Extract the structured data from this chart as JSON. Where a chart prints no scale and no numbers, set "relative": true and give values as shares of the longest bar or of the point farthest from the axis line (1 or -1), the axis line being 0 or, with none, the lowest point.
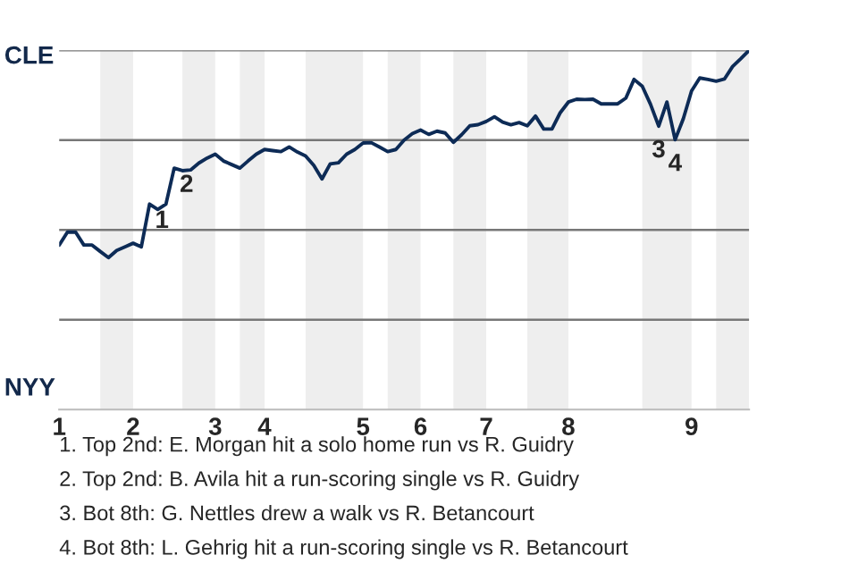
{
  "chart_data": {
    "type": "line",
    "relative": true,
    "categories": [
      "1",
      null,
      null,
      null,
      null,
      null,
      null,
      null,
      null,
      "2",
      null,
      null,
      null,
      null,
      null,
      null,
      null,
      null,
      null,
      "3",
      null,
      null,
      null,
      null,
      null,
      "4",
      null,
      null,
      null,
      null,
      null,
      null,
      null,
      null,
      null,
      null,
      null,
      "5",
      null,
      null,
      null,
      null,
      null,
      null,
      "6",
      null,
      null,
      null,
      null,
      null,
      null,
      null,
      "7",
      null,
      null,
      null,
      null,
      null,
      null,
      null,
      null,
      null,
      "8",
      null,
      null,
      null,
      null,
      null,
      null,
      null,
      null,
      null,
      null,
      null,
      null,
      null,
      null,
      "9",
      null,
      null,
      null,
      null,
      null,
      null,
      null
    ],
    "series": [
      {
        "color": "#0d2b56",
        "values": [
          0.458,
          0.494,
          0.494,
          0.458,
          0.458,
          0.44,
          0.423,
          0.443,
          0.453,
          0.463,
          0.453,
          0.572,
          0.557,
          0.572,
          0.672,
          0.665,
          0.667,
          0.686,
          0.7,
          0.711,
          0.692,
          0.682,
          0.672,
          0.692,
          0.711,
          0.724,
          0.721,
          0.718,
          0.731,
          0.717,
          0.706,
          0.68,
          0.642,
          0.684,
          0.687,
          0.711,
          0.724,
          0.742,
          0.743,
          0.731,
          0.718,
          0.724,
          0.75,
          0.768,
          0.778,
          0.766,
          0.775,
          0.77,
          0.744,
          0.765,
          0.79,
          0.793,
          0.802,
          0.815,
          0.8,
          0.793,
          0.799,
          0.79,
          0.817,
          0.781,
          0.781,
          0.826,
          0.856,
          0.864,
          0.863,
          0.864,
          0.851,
          0.851,
          0.851,
          0.867,
          0.919,
          0.9,
          0.85,
          0.789,
          0.856,
          0.751,
          0.81,
          0.887,
          0.923,
          0.919,
          0.914,
          0.92,
          0.955,
          0.977,
          1.0
        ]
      }
    ],
    "marker": "none",
    "line_style": "solid",
    "ref_lines": [
      {
        "axis": "y",
        "value": 0.25,
        "color": "#777777"
      },
      {
        "axis": "y",
        "value": 0.5,
        "color": "#777777"
      },
      {
        "axis": "y",
        "value": 0.75,
        "color": "#777777"
      },
      {
        "axis": "y",
        "value": 1,
        "color": "#777777"
      }
    ],
    "annotations": [
      "CLE",
      "NYY",
      {
        "text": "1",
        "y": 0.572
      },
      {
        "text": "2",
        "y": 0.672
      },
      {
        "text": "3",
        "y": 0.789
      },
      {
        "text": "4",
        "y": 0.751
      },
      "1. Top 2nd: E. Morgan hit a solo home run vs R. Guidry",
      "2. Top 2nd: B. Avila hit a run-scoring single vs R. Guidry",
      "3. Bot 8th: G. Nettles drew a walk vs R. Betancourt",
      "4. Bot 8th: L. Gehrig hit a run-scoring single vs R. Betancourt"
    ]
  }
}
